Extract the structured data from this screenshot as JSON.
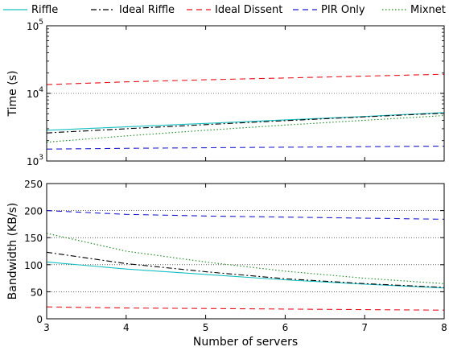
{
  "legend": [
    {
      "name": "Riffle",
      "color": "#17bfc0",
      "dash": "solid"
    },
    {
      "name": "Ideal Riffle",
      "color": "#000000",
      "dash": "dashdot"
    },
    {
      "name": "Ideal Dissent",
      "color": "#e8121c",
      "dash": "dashed"
    },
    {
      "name": "PIR Only",
      "color": "#1c1ccf",
      "dash": "dashed"
    },
    {
      "name": "Mixnet",
      "color": "#1a8a1a",
      "dash": "dotted"
    }
  ],
  "chart_data": [
    {
      "type": "line",
      "ylabel": "Time (s)",
      "xlabel": "",
      "yscale": "log",
      "ylim": [
        1000,
        100000
      ],
      "xlim": [
        3,
        8
      ],
      "grid": "horizontal dotted",
      "yticks": [
        {
          "v": 1000,
          "base": "10",
          "exp": "3"
        },
        {
          "v": 10000,
          "base": "10",
          "exp": "4"
        },
        {
          "v": 100000,
          "base": "10",
          "exp": "5"
        }
      ],
      "x": [
        3,
        4,
        5,
        6,
        7,
        8
      ],
      "series": [
        {
          "name": "Riffle",
          "values": [
            2850,
            3200,
            3600,
            4050,
            4550,
            5200
          ]
        },
        {
          "name": "Ideal Riffle",
          "values": [
            2600,
            3000,
            3450,
            3950,
            4500,
            5100
          ]
        },
        {
          "name": "Ideal Dissent",
          "values": [
            13500,
            14800,
            15900,
            16900,
            18000,
            19200
          ]
        },
        {
          "name": "PIR Only",
          "values": [
            1500,
            1540,
            1570,
            1600,
            1630,
            1660
          ]
        },
        {
          "name": "Mixnet",
          "values": [
            1900,
            2350,
            2850,
            3400,
            4000,
            4700
          ]
        }
      ]
    },
    {
      "type": "line",
      "ylabel": "Bandwidth (KB/s)",
      "xlabel": "Number of servers",
      "ylim": [
        0,
        250
      ],
      "xlim": [
        3,
        8
      ],
      "grid": "horizontal dotted",
      "yticks": [
        "0",
        "50",
        "100",
        "150",
        "200",
        "250"
      ],
      "xticks": [
        "3",
        "4",
        "5",
        "6",
        "7",
        "8"
      ],
      "x": [
        3,
        4,
        5,
        6,
        7,
        8
      ],
      "series": [
        {
          "name": "Riffle",
          "values": [
            105,
            92,
            82,
            72,
            64,
            57
          ]
        },
        {
          "name": "Ideal Riffle",
          "values": [
            123,
            102,
            87,
            74,
            65,
            58
          ]
        },
        {
          "name": "Ideal Dissent",
          "values": [
            22,
            20,
            19,
            18,
            17,
            16
          ]
        },
        {
          "name": "PIR Only",
          "values": [
            200,
            193,
            190,
            188,
            186,
            184
          ]
        },
        {
          "name": "Mixnet",
          "values": [
            158,
            125,
            105,
            88,
            75,
            65
          ]
        }
      ]
    }
  ]
}
